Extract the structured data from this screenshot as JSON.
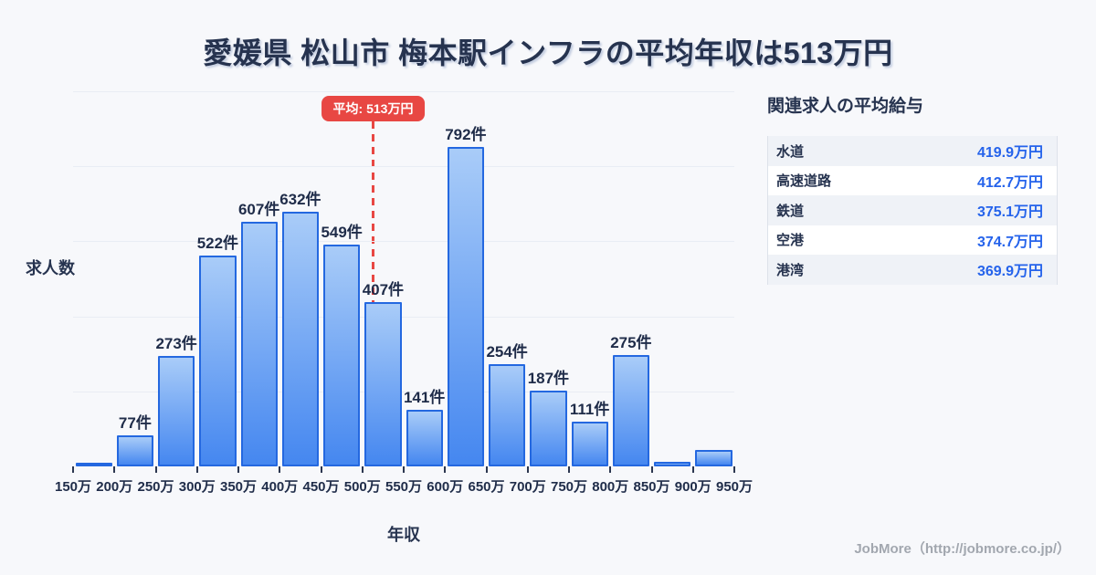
{
  "title": "愛媛県 松山市 梅本駅インフラの平均年収は513万円",
  "chart_data": {
    "type": "bar",
    "title": "愛媛県 松山市 梅本駅インフラの平均年収は513万円",
    "xlabel": "年収",
    "ylabel": "求人数",
    "x_unit": "万円",
    "count_suffix": "件",
    "grid": true,
    "x_range": [
      150,
      950
    ],
    "bin_width": 50,
    "ylim": [
      0,
      930
    ],
    "average": {
      "value": 513,
      "label": "平均: 513万円"
    },
    "x_tick_labels": [
      "150万",
      "200万",
      "250万",
      "300万",
      "350万",
      "400万",
      "450万",
      "500万",
      "550万",
      "600万",
      "650万",
      "700万",
      "750万",
      "800万",
      "850万",
      "900万",
      "950万"
    ],
    "bins": [
      {
        "range": "150万-200万",
        "value": 8,
        "label": ""
      },
      {
        "range": "200万-250万",
        "value": 77,
        "label": "77件"
      },
      {
        "range": "250万-300万",
        "value": 273,
        "label": "273件"
      },
      {
        "range": "300万-350万",
        "value": 522,
        "label": "522件"
      },
      {
        "range": "350万-400万",
        "value": 607,
        "label": "607件"
      },
      {
        "range": "400万-450万",
        "value": 632,
        "label": "632件"
      },
      {
        "range": "450万-500万",
        "value": 549,
        "label": "549件"
      },
      {
        "range": "500万-550万",
        "value": 407,
        "label": "407件"
      },
      {
        "range": "550万-600万",
        "value": 141,
        "label": "141件"
      },
      {
        "range": "600万-650万",
        "value": 792,
        "label": "792件"
      },
      {
        "range": "650万-700万",
        "value": 254,
        "label": "254件"
      },
      {
        "range": "700万-750万",
        "value": 187,
        "label": "187件"
      },
      {
        "range": "750万-800万",
        "value": 111,
        "label": "111件"
      },
      {
        "range": "800万-850万",
        "value": 275,
        "label": "275件"
      },
      {
        "range": "850万-900万",
        "value": 12,
        "label": ""
      },
      {
        "range": "900万-950万",
        "value": 40,
        "label": ""
      }
    ]
  },
  "sidebar": {
    "heading": "関連求人の平均給与",
    "rows": [
      {
        "label": "水道",
        "value": "419.9万円"
      },
      {
        "label": "高速道路",
        "value": "412.7万円"
      },
      {
        "label": "鉄道",
        "value": "375.1万円"
      },
      {
        "label": "空港",
        "value": "374.7万円"
      },
      {
        "label": "港湾",
        "value": "369.9万円"
      }
    ]
  },
  "footer": "JobMore（http://jobmore.co.jp/）",
  "colors": {
    "background": "#f7f8fb",
    "text_dark": "#26334f",
    "bar_fill_top": "#a9ccf8",
    "bar_fill_bottom": "#4587f0",
    "bar_border": "#2468e0",
    "gridline": "#e9edf4",
    "average_red": "#e84743",
    "value_blue": "#2563eb",
    "table_alt_row": "#eff2f7",
    "table_border": "#dde2ea",
    "footer_gray": "#a2a7af"
  }
}
